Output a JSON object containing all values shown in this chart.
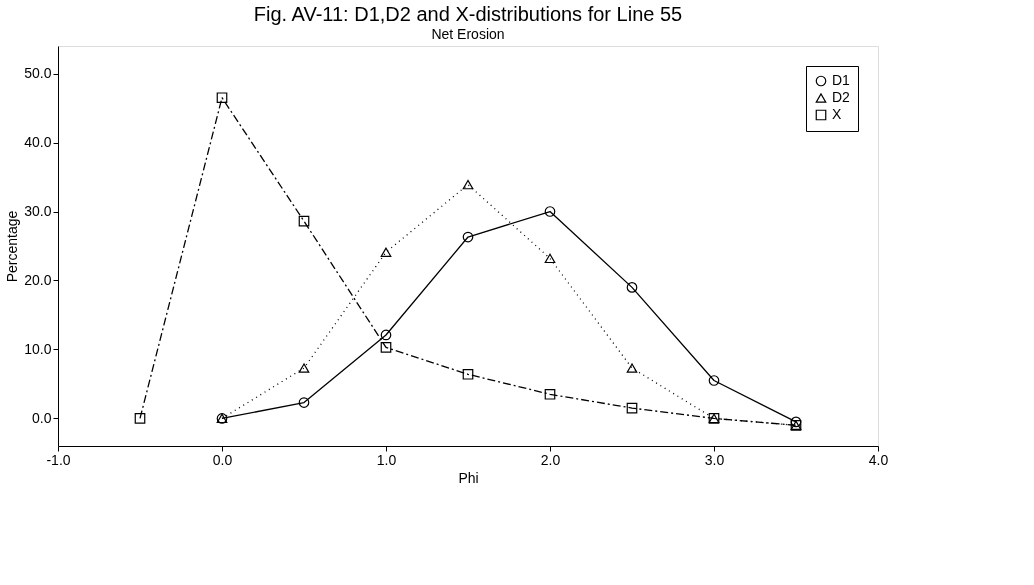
{
  "chart_data": {
    "type": "line",
    "title": "Fig. AV-11: D1,D2 and X-distributions for Line 55",
    "subtitle": "Net Erosion",
    "xlabel": "Phi",
    "ylabel": "Percentage",
    "xlim": [
      -1,
      4
    ],
    "xticks": [
      {
        "value": -1,
        "label": "-1.0"
      },
      {
        "value": 0,
        "label": "0.0"
      },
      {
        "value": 1,
        "label": "1.0"
      },
      {
        "value": 2,
        "label": "2.0"
      },
      {
        "value": 3,
        "label": "3.0"
      },
      {
        "value": 4,
        "label": "4.0"
      }
    ],
    "ylim": [
      -4,
      54
    ],
    "yticks": [
      {
        "value": 0,
        "label": "0.0"
      },
      {
        "value": 10,
        "label": "10.0"
      },
      {
        "value": 20,
        "label": "20.0"
      },
      {
        "value": 30,
        "label": "30.0"
      },
      {
        "value": 40,
        "label": "40.0"
      },
      {
        "value": 50,
        "label": "50.0"
      }
    ],
    "grid": false,
    "legend": "top right",
    "series": [
      {
        "name": "D1",
        "color": "#000000",
        "marker": "circle",
        "line_style": "solid",
        "x": [
          0,
          0.5,
          1,
          1.5,
          2,
          2.5,
          3,
          3.5
        ],
        "values": [
          0,
          2.3,
          12.1,
          26.3,
          30.0,
          19.0,
          5.5,
          -0.5
        ]
      },
      {
        "name": "D2",
        "color": "#000000",
        "marker": "triangle",
        "line_style": "dotted",
        "x": [
          0,
          0.5,
          1,
          1.5,
          2,
          2.5,
          3,
          3.5
        ],
        "values": [
          0,
          7.3,
          24.1,
          33.9,
          23.2,
          7.3,
          0,
          -1.0
        ]
      },
      {
        "name": "X",
        "color": "#000000",
        "marker": "square",
        "line_style": "dashed",
        "x": [
          -0.5,
          0,
          0.5,
          1,
          1.5,
          2,
          2.5,
          3,
          3.5
        ],
        "values": [
          0,
          46.5,
          28.6,
          10.3,
          6.4,
          3.5,
          1.5,
          0,
          -1.0
        ]
      }
    ]
  }
}
